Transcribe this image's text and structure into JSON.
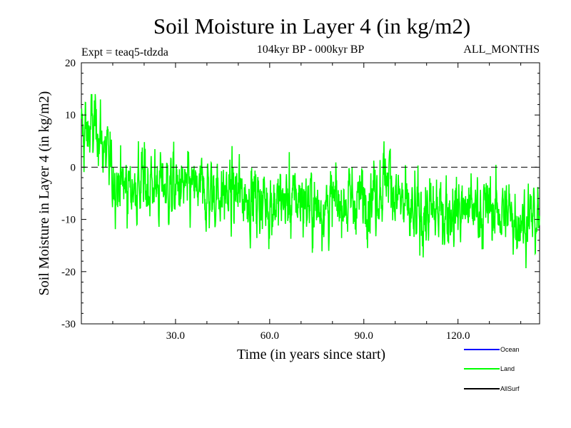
{
  "colors": {
    "ocean": "#0000ff",
    "land": "#00ff00",
    "allsurf": "#000000",
    "axis": "#000000",
    "background": "#ffffff"
  },
  "chart_data": {
    "type": "line",
    "title": "Soil Moisture in Layer 4 (in kg/m2)",
    "subtitle": "104kyr BP - 000kyr BP",
    "expt_label": "Expt = teaq5-tdzda",
    "period_label": "ALL_MONTHS",
    "xlabel": "Time (in years since start)",
    "ylabel": "Soil Moisture in Layer 4 (in kg/m2)",
    "xlim": [
      0,
      146
    ],
    "ylim": [
      -30,
      20
    ],
    "xticks": [
      30,
      60,
      90,
      120
    ],
    "xtick_labels": [
      "30.0",
      "60.0",
      "90.0",
      "120.0"
    ],
    "yticks": [
      -30,
      -20,
      -10,
      0,
      10,
      20
    ],
    "ytick_labels": [
      "-30",
      "-20",
      "-10",
      "0",
      "10",
      "20"
    ],
    "reference_line": 0,
    "legend": [
      "Ocean",
      "Land",
      "AllSurf"
    ],
    "series": [
      {
        "name": "Land",
        "x_start": 0,
        "x_step": 0.083333,
        "sampling": "monthly",
        "trend_points": [
          [
            0,
            6
          ],
          [
            5,
            8
          ],
          [
            8,
            2
          ],
          [
            10,
            -2
          ],
          [
            15,
            -4
          ],
          [
            20,
            -3
          ],
          [
            30,
            -4
          ],
          [
            40,
            -5
          ],
          [
            50,
            -5
          ],
          [
            60,
            -7
          ],
          [
            70,
            -6
          ],
          [
            75,
            -8
          ],
          [
            80,
            -7
          ],
          [
            90,
            -6
          ],
          [
            95,
            -4
          ],
          [
            98,
            -1
          ],
          [
            100,
            -5
          ],
          [
            105,
            -10
          ],
          [
            110,
            -9
          ],
          [
            120,
            -8
          ],
          [
            130,
            -8
          ],
          [
            140,
            -10
          ],
          [
            146,
            -10
          ]
        ],
        "variability_std": 3.2,
        "max": 14,
        "min": -20.5
      }
    ]
  }
}
